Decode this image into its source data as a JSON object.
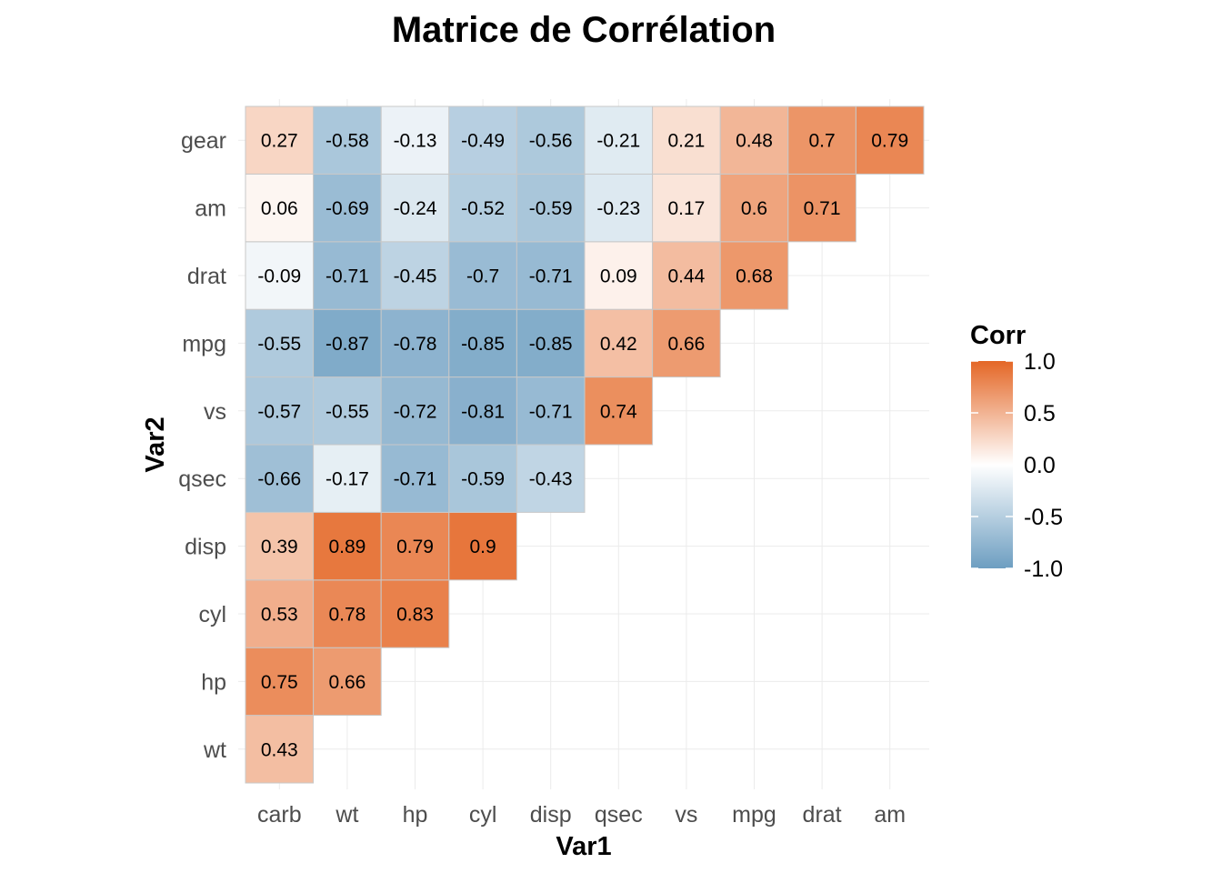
{
  "chart_data": {
    "type": "heatmap",
    "title": "Matrice de Corrélation",
    "xlabel": "Var1",
    "ylabel": "Var2",
    "x_categories": [
      "carb",
      "wt",
      "hp",
      "cyl",
      "disp",
      "qsec",
      "vs",
      "mpg",
      "drat",
      "am"
    ],
    "y_categories": [
      "wt",
      "hp",
      "cyl",
      "disp",
      "qsec",
      "vs",
      "mpg",
      "drat",
      "am",
      "gear"
    ],
    "cells": [
      {
        "x": "carb",
        "y": "wt",
        "value": 0.43,
        "label": "0.43"
      },
      {
        "x": "carb",
        "y": "hp",
        "value": 0.75,
        "label": "0.75"
      },
      {
        "x": "wt",
        "y": "hp",
        "value": 0.66,
        "label": "0.66"
      },
      {
        "x": "carb",
        "y": "cyl",
        "value": 0.53,
        "label": "0.53"
      },
      {
        "x": "wt",
        "y": "cyl",
        "value": 0.78,
        "label": "0.78"
      },
      {
        "x": "hp",
        "y": "cyl",
        "value": 0.83,
        "label": "0.83"
      },
      {
        "x": "carb",
        "y": "disp",
        "value": 0.39,
        "label": "0.39"
      },
      {
        "x": "wt",
        "y": "disp",
        "value": 0.89,
        "label": "0.89"
      },
      {
        "x": "hp",
        "y": "disp",
        "value": 0.79,
        "label": "0.79"
      },
      {
        "x": "cyl",
        "y": "disp",
        "value": 0.9,
        "label": "0.9"
      },
      {
        "x": "carb",
        "y": "qsec",
        "value": -0.66,
        "label": "-0.66"
      },
      {
        "x": "wt",
        "y": "qsec",
        "value": -0.17,
        "label": "-0.17"
      },
      {
        "x": "hp",
        "y": "qsec",
        "value": -0.71,
        "label": "-0.71"
      },
      {
        "x": "cyl",
        "y": "qsec",
        "value": -0.59,
        "label": "-0.59"
      },
      {
        "x": "disp",
        "y": "qsec",
        "value": -0.43,
        "label": "-0.43"
      },
      {
        "x": "carb",
        "y": "vs",
        "value": -0.57,
        "label": "-0.57"
      },
      {
        "x": "wt",
        "y": "vs",
        "value": -0.55,
        "label": "-0.55"
      },
      {
        "x": "hp",
        "y": "vs",
        "value": -0.72,
        "label": "-0.72"
      },
      {
        "x": "cyl",
        "y": "vs",
        "value": -0.81,
        "label": "-0.81"
      },
      {
        "x": "disp",
        "y": "vs",
        "value": -0.71,
        "label": "-0.71"
      },
      {
        "x": "qsec",
        "y": "vs",
        "value": 0.74,
        "label": "0.74"
      },
      {
        "x": "carb",
        "y": "mpg",
        "value": -0.55,
        "label": "-0.55"
      },
      {
        "x": "wt",
        "y": "mpg",
        "value": -0.87,
        "label": "-0.87"
      },
      {
        "x": "hp",
        "y": "mpg",
        "value": -0.78,
        "label": "-0.78"
      },
      {
        "x": "cyl",
        "y": "mpg",
        "value": -0.85,
        "label": "-0.85"
      },
      {
        "x": "disp",
        "y": "mpg",
        "value": -0.85,
        "label": "-0.85"
      },
      {
        "x": "qsec",
        "y": "mpg",
        "value": 0.42,
        "label": "0.42"
      },
      {
        "x": "vs",
        "y": "mpg",
        "value": 0.66,
        "label": "0.66"
      },
      {
        "x": "carb",
        "y": "drat",
        "value": -0.09,
        "label": "-0.09"
      },
      {
        "x": "wt",
        "y": "drat",
        "value": -0.71,
        "label": "-0.71"
      },
      {
        "x": "hp",
        "y": "drat",
        "value": -0.45,
        "label": "-0.45"
      },
      {
        "x": "cyl",
        "y": "drat",
        "value": -0.7,
        "label": "-0.7"
      },
      {
        "x": "disp",
        "y": "drat",
        "value": -0.71,
        "label": "-0.71"
      },
      {
        "x": "qsec",
        "y": "drat",
        "value": 0.09,
        "label": "0.09"
      },
      {
        "x": "vs",
        "y": "drat",
        "value": 0.44,
        "label": "0.44"
      },
      {
        "x": "mpg",
        "y": "drat",
        "value": 0.68,
        "label": "0.68"
      },
      {
        "x": "carb",
        "y": "am",
        "value": 0.06,
        "label": "0.06"
      },
      {
        "x": "wt",
        "y": "am",
        "value": -0.69,
        "label": "-0.69"
      },
      {
        "x": "hp",
        "y": "am",
        "value": -0.24,
        "label": "-0.24"
      },
      {
        "x": "cyl",
        "y": "am",
        "value": -0.52,
        "label": "-0.52"
      },
      {
        "x": "disp",
        "y": "am",
        "value": -0.59,
        "label": "-0.59"
      },
      {
        "x": "qsec",
        "y": "am",
        "value": -0.23,
        "label": "-0.23"
      },
      {
        "x": "vs",
        "y": "am",
        "value": 0.17,
        "label": "0.17"
      },
      {
        "x": "mpg",
        "y": "am",
        "value": 0.6,
        "label": "0.6"
      },
      {
        "x": "drat",
        "y": "am",
        "value": 0.71,
        "label": "0.71"
      },
      {
        "x": "carb",
        "y": "gear",
        "value": 0.27,
        "label": "0.27"
      },
      {
        "x": "wt",
        "y": "gear",
        "value": -0.58,
        "label": "-0.58"
      },
      {
        "x": "hp",
        "y": "gear",
        "value": -0.13,
        "label": "-0.13"
      },
      {
        "x": "cyl",
        "y": "gear",
        "value": -0.49,
        "label": "-0.49"
      },
      {
        "x": "disp",
        "y": "gear",
        "value": -0.56,
        "label": "-0.56"
      },
      {
        "x": "qsec",
        "y": "gear",
        "value": -0.21,
        "label": "-0.21"
      },
      {
        "x": "vs",
        "y": "gear",
        "value": 0.21,
        "label": "0.21"
      },
      {
        "x": "mpg",
        "y": "gear",
        "value": 0.48,
        "label": "0.48"
      },
      {
        "x": "drat",
        "y": "gear",
        "value": 0.7,
        "label": "0.7"
      },
      {
        "x": "am",
        "y": "gear",
        "value": 0.79,
        "label": "0.79"
      }
    ],
    "legend": {
      "title": "Corr",
      "ticks": [
        "1.0",
        "0.5",
        "0.0",
        "-0.5",
        "-1.0"
      ],
      "tick_values": [
        1.0,
        0.5,
        0.0,
        -0.5,
        -1.0
      ],
      "placement": "right"
    },
    "value_range": [
      -1,
      1
    ],
    "colors": {
      "low": "#6d9ec1",
      "mid": "#ffffff",
      "high": "#e46726"
    },
    "grid": true
  }
}
